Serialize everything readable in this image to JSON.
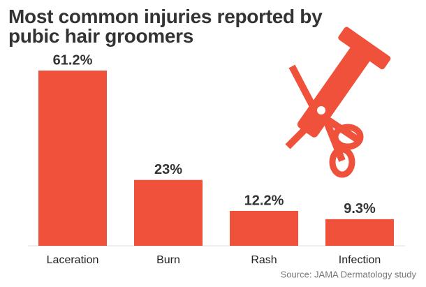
{
  "chart_data": {
    "type": "bar",
    "title": "Most common injuries reported by pubic hair groomers",
    "categories": [
      "Laceration",
      "Burn",
      "Rash",
      "Infection"
    ],
    "values": [
      61.2,
      23,
      12.2,
      9.3
    ],
    "value_labels": [
      "61.2%",
      "23%",
      "12.2%",
      "9.3%"
    ],
    "color": "#f0513a",
    "source": "Source: JAMA Dermatology study"
  }
}
